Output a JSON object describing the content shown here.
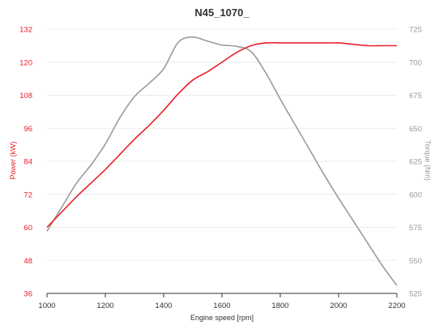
{
  "chart_data": {
    "type": "line",
    "title": "N45_1070_",
    "xlabel": "Engine speed [rpm]",
    "ylabel_left": "Power (kW)",
    "ylabel_right": "Torque (Nm)",
    "xlim": [
      1000,
      2200
    ],
    "ylim_left": [
      36,
      132
    ],
    "ylim_right": [
      525,
      725
    ],
    "x_ticks": [
      "1000",
      "1200",
      "1400",
      "1600",
      "1800",
      "2000",
      "2200"
    ],
    "y_left_ticks": [
      "36",
      "48",
      "60",
      "72",
      "84",
      "96",
      "108",
      "120",
      "132"
    ],
    "y_right_ticks": [
      "525",
      "550",
      "575",
      "600",
      "625",
      "650",
      "675",
      "700",
      "725"
    ],
    "grid": true,
    "colors": {
      "power": "#e8202a",
      "torque": "#9b9b9b",
      "left_axis": "#e8202a",
      "right_axis": "#999999"
    },
    "series": [
      {
        "axis": "left",
        "x": [
          1000,
          1050,
          1100,
          1150,
          1200,
          1250,
          1300,
          1350,
          1400,
          1450,
          1500,
          1550,
          1600,
          1650,
          1700,
          1750,
          1800,
          1850,
          1900,
          1950,
          2000,
          2050,
          2100,
          2150,
          2200
        ],
        "values": [
          60,
          65.5,
          71,
          76,
          81,
          86.5,
          92,
          97,
          102.5,
          108.5,
          113.5,
          116.5,
          120,
          123.5,
          126,
          127,
          127,
          127,
          127,
          127,
          127,
          126.5,
          126,
          126,
          126
        ]
      },
      {
        "axis": "right",
        "x": [
          1000,
          1050,
          1100,
          1150,
          1200,
          1250,
          1300,
          1350,
          1400,
          1450,
          1500,
          1550,
          1600,
          1650,
          1700,
          1750,
          1800,
          1850,
          1900,
          1950,
          2000,
          2050,
          2100,
          2150,
          2200
        ],
        "values": [
          572,
          590,
          608,
          622,
          638,
          658,
          674,
          684,
          695,
          715,
          719,
          716,
          713,
          712,
          708,
          692,
          672,
          653,
          634,
          615,
          597,
          580,
          563,
          546,
          531
        ]
      }
    ]
  }
}
